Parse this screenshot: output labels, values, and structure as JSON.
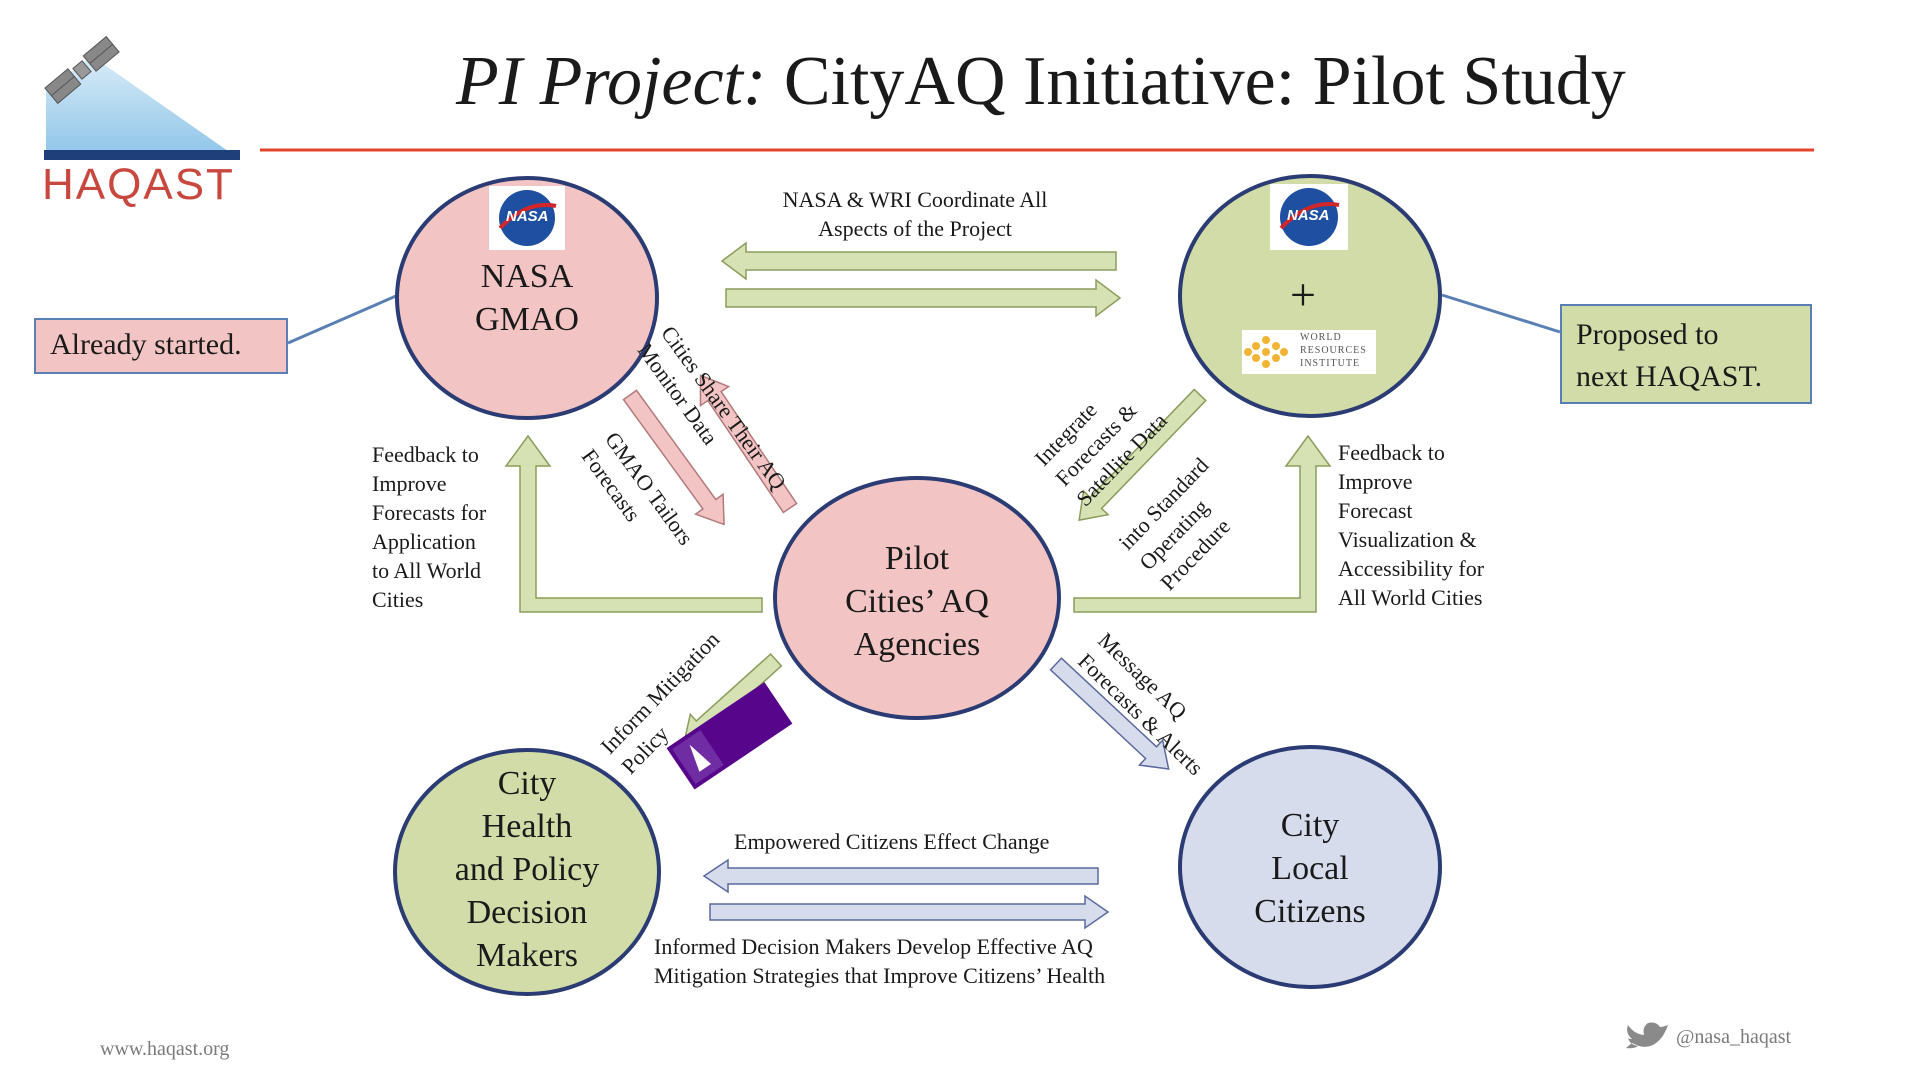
{
  "slide": {
    "title_italic": "PI Project:",
    "title_main": " CityAQ Initiative: Pilot Study",
    "logo_text": "HAQAST",
    "footer_left": "www.haqast.org",
    "footer_right": "@nasa_haqast"
  },
  "colors": {
    "title_rule": "#e0452b",
    "pink_node": "#f2c4c4",
    "green_node": "#d1dca8",
    "blue_node": "#d7dced",
    "node_border": "#2b3b73",
    "callout_border": "#5a7fb5"
  },
  "nodes": {
    "nasa_gmao": {
      "lines": [
        "NASA",
        "GMAO"
      ],
      "logo": "NASA"
    },
    "nasa_wri": {
      "plus": "+",
      "logo": "NASA",
      "wri_lines": [
        "WORLD",
        "RESOURCES",
        "INSTITUTE"
      ]
    },
    "pilot": {
      "lines": [
        "Pilot",
        "Cities’ AQ",
        "Agencies"
      ]
    },
    "city_health": {
      "lines": [
        "City",
        "Health",
        "and Policy",
        "Decision",
        "Makers"
      ]
    },
    "city_local": {
      "lines": [
        "City",
        "Local",
        "Citizens"
      ]
    }
  },
  "callouts": {
    "already": "Already started.",
    "proposed": [
      "Proposed to",
      "next HAQAST."
    ]
  },
  "labels": {
    "coordinate": [
      "NASA & WRI Coordinate All",
      "Aspects of the Project"
    ],
    "cities_share": [
      "Cities Share Their AQ",
      "Monitor Data"
    ],
    "gmao_tailors": [
      "GMAO Tailors",
      "Forecasts"
    ],
    "integrate": [
      "Integrate",
      "Forecasts &",
      "Satellite Data"
    ],
    "into_sop": [
      "into Standard",
      "Operating",
      "Procedure"
    ],
    "feedback_left": [
      "Feedback to",
      "Improve",
      "Forecasts for",
      "Application",
      "to All World",
      "Cities"
    ],
    "feedback_right": [
      "Feedback to",
      "Improve",
      "Forecast",
      "Visualization &",
      "Accessibility for",
      "All World Cities"
    ],
    "inform_mitigation": [
      "Inform Mitigation",
      "Policy"
    ],
    "message_aq": [
      "Message AQ",
      "Forecasts & Alerts"
    ],
    "empowered": "Empowered Citizens Effect Change",
    "informed": [
      "Informed Decision Makers Develop Effective AQ",
      "Mitigation Strategies that Improve Citizens’ Health"
    ],
    "nyu": "NYU"
  },
  "icons": [
    "satellite-icon",
    "nasa-meatball-icon",
    "wri-logo-icon",
    "nyu-logo-icon",
    "twitter-bird-icon"
  ]
}
